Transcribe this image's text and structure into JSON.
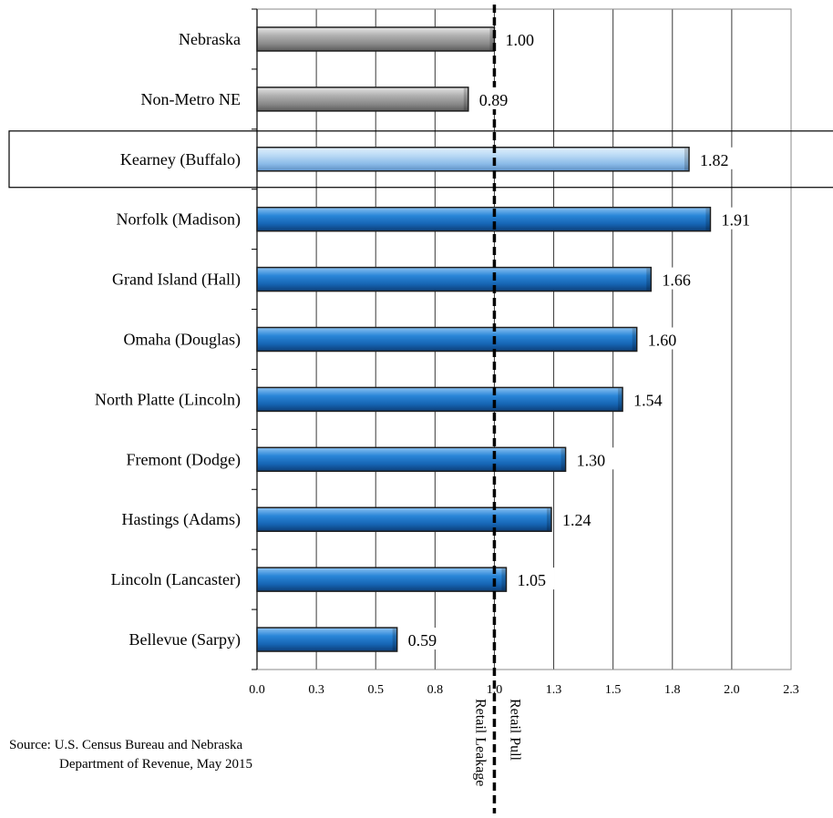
{
  "chart_data": {
    "type": "bar",
    "orientation": "horizontal",
    "categories": [
      "Nebraska",
      "Non-Metro NE",
      "Kearney (Buffalo)",
      "Norfolk (Madison)",
      "Grand Island (Hall)",
      "Omaha (Douglas)",
      "North Platte (Lincoln)",
      "Fremont (Dodge)",
      "Hastings (Adams)",
      "Lincoln (Lancaster)",
      "Bellevue (Sarpy)"
    ],
    "values": [
      1.0,
      0.89,
      1.82,
      1.91,
      1.66,
      1.6,
      1.54,
      1.3,
      1.24,
      1.05,
      0.59
    ],
    "value_labels": [
      "1.00",
      "0.89",
      "1.82",
      "1.91",
      "1.66",
      "1.60",
      "1.54",
      "1.30",
      "1.24",
      "1.05",
      "0.59"
    ],
    "bar_styles": [
      "gray",
      "gray",
      "highlight",
      "blue",
      "blue",
      "blue",
      "blue",
      "blue",
      "blue",
      "blue",
      "blue"
    ],
    "xlim": [
      0,
      2.25
    ],
    "xticks": [
      0,
      0.25,
      0.5,
      0.75,
      1.0,
      1.25,
      1.5,
      1.75,
      2.0,
      2.25
    ],
    "xtick_labels": [
      "0.0",
      "0.3",
      "0.5",
      "0.8",
      "1.0",
      "1.3",
      "1.5",
      "1.8",
      "2.0",
      "2.3"
    ],
    "grid": true,
    "reference_line": {
      "value": 1.0,
      "style": "dashed",
      "label_left": "Retail Leakage",
      "label_right": "Retail Pull"
    },
    "highlighted_category": "Kearney (Buffalo)",
    "title": "",
    "xlabel": "",
    "ylabel": ""
  },
  "colors": {
    "gray": "#9e9e9e",
    "blue": "#1f7bd0",
    "highlight": "#a8cdf0",
    "grid": "#333333"
  },
  "source": {
    "line1": "Source: U.S. Census Bureau and Nebraska",
    "line2": "Department of Revenue, May 2015"
  }
}
